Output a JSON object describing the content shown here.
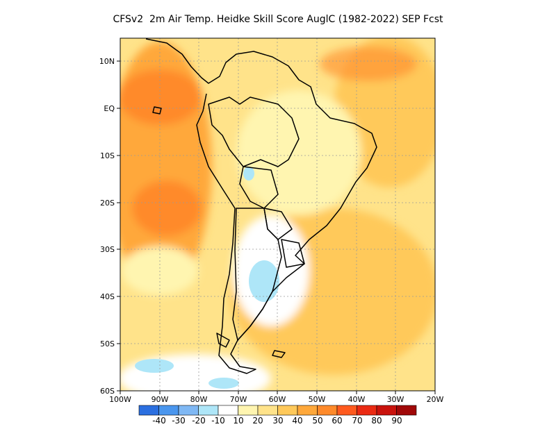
{
  "title": "CFSv2  2m Air Temp. Heidke Skill Score AuglC (1982-2022) SEP Fcst",
  "map": {
    "lon_range": [
      -100,
      -20
    ],
    "lat_range": [
      -60,
      15
    ],
    "lat_ticks": [
      "10N",
      "EQ",
      "10S",
      "20S",
      "30S",
      "40S",
      "50S",
      "60S"
    ],
    "lon_ticks": [
      "100W",
      "90W",
      "80W",
      "70W",
      "60W",
      "50W",
      "40W",
      "30W",
      "20W"
    ]
  },
  "colorbar": {
    "labels": [
      "-40",
      "-30",
      "-20",
      "-10",
      "10",
      "20",
      "30",
      "40",
      "50",
      "60",
      "70",
      "80",
      "90"
    ],
    "colors": [
      "#2b6fe0",
      "#4a96ee",
      "#7fb8f4",
      "#aee6f8",
      "#ffffff",
      "#fff5b0",
      "#ffe38a",
      "#ffc95a",
      "#ffa83a",
      "#ff8a2a",
      "#ff5a1e",
      "#ea2a12",
      "#c9120c",
      "#a00808"
    ]
  }
}
